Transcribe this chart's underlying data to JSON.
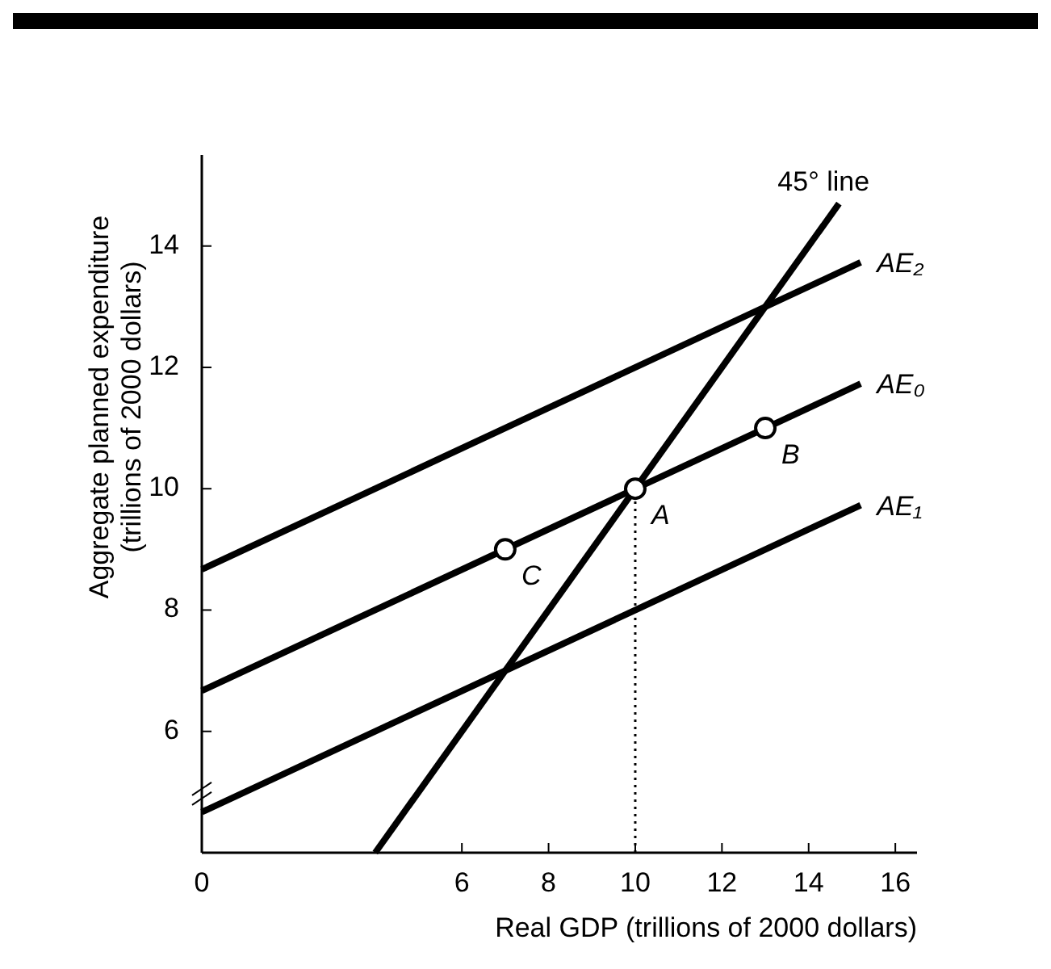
{
  "chart_data": {
    "type": "line",
    "xlabel": "Real GDP (trillions of 2000 dollars)",
    "ylabel": "Aggregate planned expenditure\n(trillions of 2000 dollars)",
    "xlim": [
      0,
      16.5
    ],
    "ylim": [
      4,
      15.5
    ],
    "xticks": [
      0,
      6,
      8,
      10,
      12,
      14,
      16
    ],
    "yticks": [
      6,
      8,
      10,
      12,
      14
    ],
    "series": [
      {
        "name": "45° line",
        "color": "#000000",
        "x": [
          4,
          14.7
        ],
        "values": [
          4,
          14.7
        ]
      },
      {
        "name": "AE₂",
        "color": "#000000",
        "x": [
          0,
          15.2
        ],
        "values": [
          8.67,
          13.73
        ]
      },
      {
        "name": "AE₀",
        "color": "#000000",
        "x": [
          0,
          15.2
        ],
        "values": [
          6.67,
          11.73
        ]
      },
      {
        "name": "AE₁",
        "color": "#000000",
        "x": [
          0,
          15.2
        ],
        "values": [
          4.67,
          9.73
        ]
      },
      {
        "type": "line",
        "line_style": "dotted",
        "color": "#000000",
        "x": [
          10,
          10
        ],
        "values": [
          4,
          10
        ]
      },
      {
        "type": "scatter",
        "marker": "circle",
        "color": "#000000",
        "x": [
          7,
          10,
          13
        ],
        "values": [
          9,
          10,
          11
        ]
      }
    ],
    "annotations": [
      {
        "text": "C",
        "x": 7,
        "y": 9
      },
      {
        "text": "A",
        "x": 10,
        "y": 10
      },
      {
        "text": "B",
        "x": 13,
        "y": 11
      }
    ]
  }
}
